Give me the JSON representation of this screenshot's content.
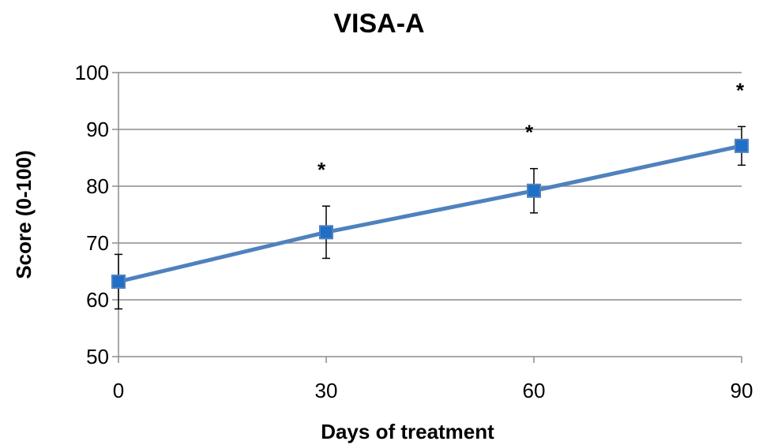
{
  "chart_data": {
    "type": "line",
    "title": "VISA-A",
    "xlabel": "Days of treatment",
    "ylabel": "Score (0-100)",
    "x": [
      0,
      30,
      60,
      90
    ],
    "xticks": [
      0,
      30,
      60,
      90
    ],
    "xlim": [
      0,
      90
    ],
    "ylim": [
      50,
      100
    ],
    "yticks": [
      50,
      60,
      70,
      80,
      90,
      100
    ],
    "grid": true,
    "legend": "none",
    "series": [
      {
        "values": [
          63.2,
          71.9,
          79.2,
          87.1
        ],
        "error": [
          4.8,
          4.6,
          3.9,
          3.4
        ]
      }
    ],
    "annotations": [
      "",
      "*",
      "*",
      "*"
    ],
    "colors": {
      "line": "#4f81bd",
      "marker_fill": "#1f6ec7",
      "marker_edge": "#4f81bd",
      "grid": "#8c8c8c",
      "axis": "#8c8c8c",
      "error_bar": "#000000"
    }
  }
}
